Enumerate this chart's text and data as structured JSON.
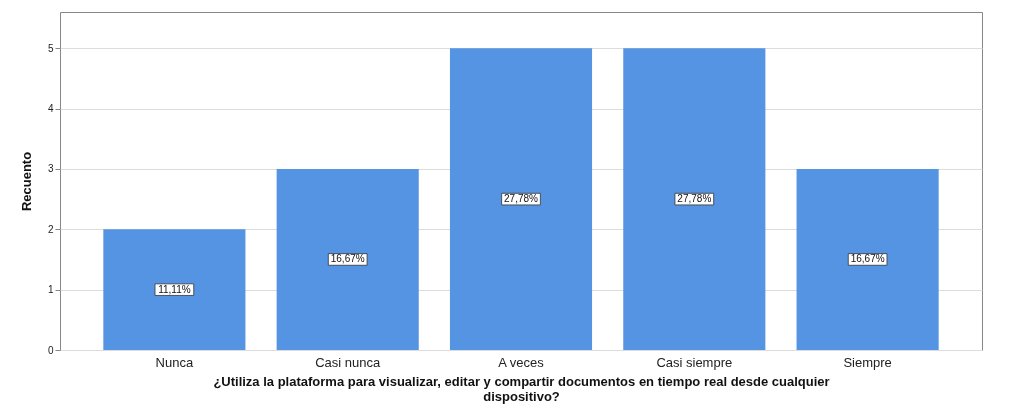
{
  "chart_data": {
    "type": "bar",
    "xlabel": "¿Utiliza la plataforma para visualizar, editar y compartir documentos en tiempo real desde cualquier dispositivo?",
    "ylabel": "Recuento",
    "categories": [
      "Nunca",
      "Casi nunca",
      "A veces",
      "Casi siempre",
      "Siempre"
    ],
    "values": [
      2,
      3,
      5,
      5,
      3
    ],
    "annotations": [
      "11,11%",
      "16,67%",
      "27,78%",
      "27,78%",
      "16,67%"
    ],
    "color": "#5494e3",
    "ylim": [
      0,
      5.6
    ],
    "yticks": [
      0,
      1,
      2,
      3,
      4,
      5
    ],
    "grid": "y"
  }
}
